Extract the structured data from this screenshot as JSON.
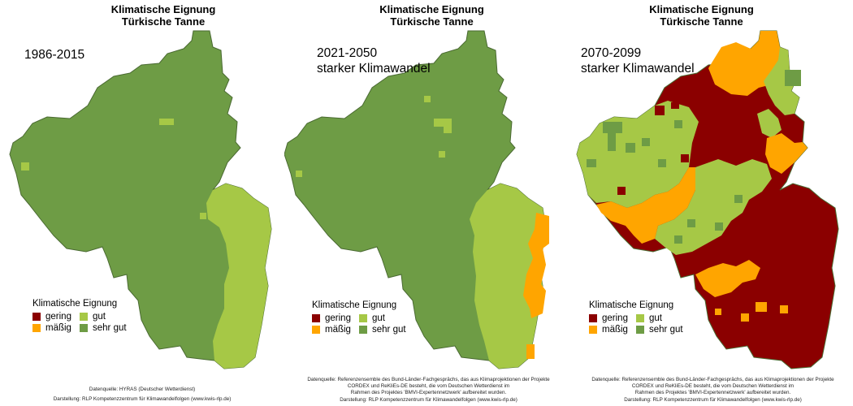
{
  "colors": {
    "gering": "#8b0000",
    "maessig": "#ffa500",
    "gut": "#a6c846",
    "sehr_gut": "#6e9c45",
    "border": "#4a6a32"
  },
  "legend": {
    "title": "Klimatische Eignung",
    "items": [
      "gering",
      "mäßig",
      "gut",
      "sehr gut"
    ]
  },
  "panels": [
    {
      "title_line1": "Klimatische Eignung",
      "title_line2": "Türkische Tanne",
      "period": "1986-2015",
      "scenario": "",
      "source": "Datenquelle: HYRAS (Deutscher Wetterdienst)",
      "source_cont": "",
      "source_cont2": "",
      "credit": "Darstellung: RLP Kompetenzzentrum für Klimawandelfolgen (www.kwis-rlp.de)"
    },
    {
      "title_line1": "Klimatische Eignung",
      "title_line2": "Türkische Tanne",
      "period": "2021-2050",
      "scenario": "starker Klimawandel",
      "source": "Datenquelle: Referenzensemble des Bund-Länder-Fachgesprächs, das aus Klimaprojektionen der Projekte",
      "source_cont": "CORDEX und ReKliEs-DE besteht, die vom Deutschen Wetterdienst im",
      "source_cont2": "Rahmen des Projektes 'BMVI-Expertennetzwerk' aufbereitet wurden.",
      "credit": "Darstellung: RLP Kompetenzzentrum für Klimawandelfolgen (www.kwis-rlp.de)"
    },
    {
      "title_line1": "Klimatische Eignung",
      "title_line2": "Türkische Tanne",
      "period": "2070-2099",
      "scenario": "starker Klimawandel",
      "source": "Datenquelle: Referenzensemble des Bund-Länder-Fachgesprächs, das aus Klimaprojektionen der Projekte",
      "source_cont": "CORDEX und ReKliEs-DE besteht, die vom Deutschen Wetterdienst im",
      "source_cont2": "Rahmen des Projektes 'BMVI-Expertennetzwerk' aufbereitet wurden.",
      "credit": "Darstellung: RLP Kompetenzzentrum für Klimawandelfolgen (www.kwis-rlp.de)"
    }
  ]
}
